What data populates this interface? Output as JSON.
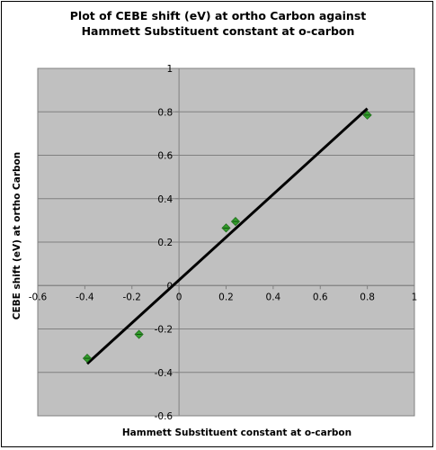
{
  "chart_data": {
    "type": "scatter",
    "title": "Plot of CEBE shift (eV) at ortho Carbon against\nHammett Substituent constant at o-carbon",
    "xlabel": "Hammett Substituent constant at o-carbon",
    "ylabel": "CEBE shift (eV) at ortho Carbon",
    "xlim": [
      -0.6,
      1
    ],
    "ylim": [
      -0.6,
      1
    ],
    "xticks": [
      "-0.6",
      "-0.4",
      "-0.2",
      "0",
      "0.2",
      "0.4",
      "0.6",
      "0.8",
      "1"
    ],
    "yticks": [
      "-0.6",
      "-0.4",
      "-0.2",
      "0",
      "0.2",
      "0.4",
      "0.6",
      "0.8",
      "1"
    ],
    "grid": "horizontal",
    "legend": "none",
    "series": [
      {
        "x": [
          -0.39,
          -0.17,
          0.2,
          0.24,
          0.8
        ],
        "y": [
          -0.335,
          -0.225,
          0.265,
          0.295,
          0.785
        ]
      }
    ],
    "trendline": {
      "x": [
        -0.39,
        0.8
      ],
      "y": [
        -0.36,
        0.815
      ]
    },
    "colors": {
      "plot_background": "#c0c0c0",
      "marker": "#33a02c",
      "trendline": "#000000",
      "gridline": "#808080"
    }
  }
}
